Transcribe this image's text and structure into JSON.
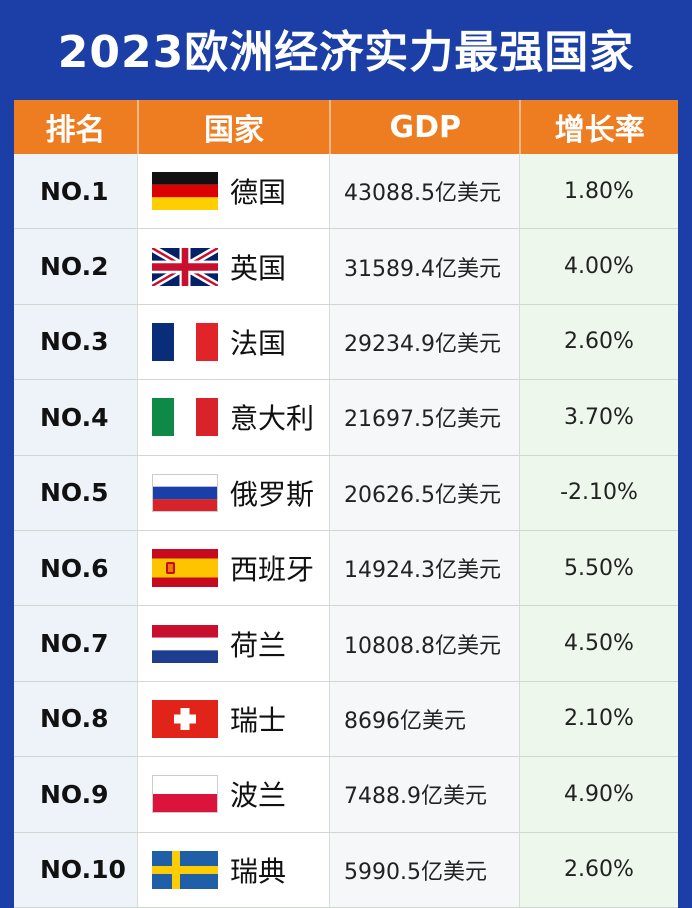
{
  "title": "2023欧洲经济实力最强国家",
  "headers": {
    "rank": "排名",
    "country": "国家",
    "gdp": "GDP",
    "growth": "增长率"
  },
  "rows": [
    {
      "rank": "NO.1",
      "country": "德国",
      "gdp": "43088.5亿美元",
      "growth": "1.80%",
      "flag": "germany-flag-icon"
    },
    {
      "rank": "NO.2",
      "country": "英国",
      "gdp": "31589.4亿美元",
      "growth": "4.00%",
      "flag": "uk-flag-icon"
    },
    {
      "rank": "NO.3",
      "country": "法国",
      "gdp": "29234.9亿美元",
      "growth": "2.60%",
      "flag": "france-flag-icon"
    },
    {
      "rank": "NO.4",
      "country": "意大利",
      "gdp": "21697.5亿美元",
      "growth": "3.70%",
      "flag": "italy-flag-icon"
    },
    {
      "rank": "NO.5",
      "country": "俄罗斯",
      "gdp": "20626.5亿美元",
      "growth": "-2.10%",
      "flag": "russia-flag-icon"
    },
    {
      "rank": "NO.6",
      "country": "西班牙",
      "gdp": "14924.3亿美元",
      "growth": "5.50%",
      "flag": "spain-flag-icon"
    },
    {
      "rank": "NO.7",
      "country": "荷兰",
      "gdp": "10808.8亿美元",
      "growth": "4.50%",
      "flag": "netherlands-flag-icon"
    },
    {
      "rank": "NO.8",
      "country": "瑞士",
      "gdp": "8696亿美元",
      "growth": "2.10%",
      "flag": "switzerland-flag-icon"
    },
    {
      "rank": "NO.9",
      "country": "波兰",
      "gdp": "7488.9亿美元",
      "growth": "4.90%",
      "flag": "poland-flag-icon"
    },
    {
      "rank": "NO.10",
      "country": "瑞典",
      "gdp": "5990.5亿美元",
      "growth": "2.60%",
      "flag": "sweden-flag-icon"
    }
  ],
  "colors": {
    "background": "#1b3fa6",
    "header": "#ee7d22"
  }
}
